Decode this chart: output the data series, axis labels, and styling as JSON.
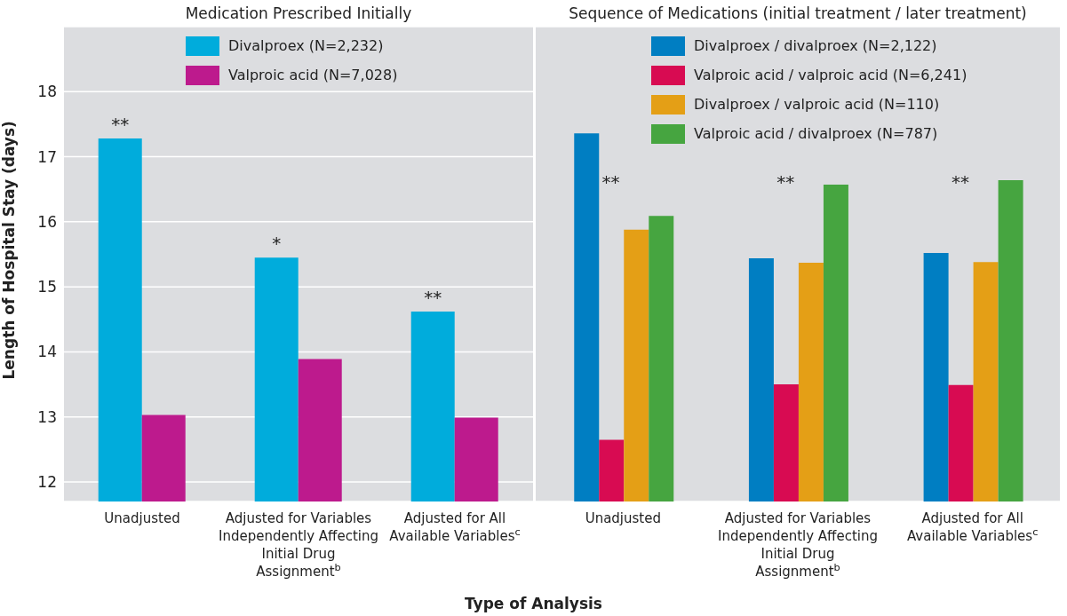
{
  "chart_data": [
    {
      "type": "bar",
      "title": "Medication Prescribed Initially",
      "ylabel": "Length of Hospital Stay (days)",
      "xlabel": "Type of Analysis",
      "categories": [
        "Unadjusted",
        "Adjusted for Variables Independently Affecting Initial Drug Assignment$^{b}$",
        "Adjusted for All Available Variables$^{c}$"
      ],
      "series": [
        {
          "name": "Divalproex (N=2,232)",
          "color": "#00acdc",
          "values": [
            17.28,
            15.45,
            14.62
          ]
        },
        {
          "name": "Valproic acid (N=7,028)",
          "color": "#bd1a8d",
          "values": [
            13.03,
            13.89,
            12.99
          ]
        }
      ],
      "ylim": [
        11.7,
        19
      ],
      "yticks": [
        12,
        13,
        14,
        15,
        16,
        17,
        18
      ],
      "grid": "y",
      "legend": "top",
      "annotations": [
        "**",
        "*",
        "**"
      ]
    },
    {
      "type": "bar",
      "title": "Sequence of Medications (initial treatment / later treatment)",
      "categories": [
        "Unadjusted",
        "Adjusted for Variables Independently Affecting Initial Drug Assignment$^{b}$",
        "Adjusted for All Available Variables$^{c}$"
      ],
      "series": [
        {
          "name": "Divalproex / divalproex (N=2,122)",
          "color": "#007ec2",
          "values": [
            17.36,
            15.44,
            15.52
          ]
        },
        {
          "name": "Valproic acid / valproic acid (N=6,241)",
          "color": "#d80b52",
          "values": [
            12.65,
            13.5,
            13.49
          ]
        },
        {
          "name": "Divalproex / valproic acid (N=110)",
          "color": "#e49f16",
          "values": [
            15.88,
            15.37,
            15.38
          ]
        },
        {
          "name": "Valproic acid / divalproex (N=787)",
          "color": "#46a540",
          "values": [
            16.09,
            16.57,
            16.64
          ]
        }
      ],
      "ylim": [
        11.7,
        19
      ],
      "yticks": [
        12,
        13,
        14,
        15,
        16,
        17,
        18
      ],
      "grid": "y",
      "legend": "top",
      "tick_labels": "x",
      "annotations": [
        "**",
        "**",
        "**"
      ]
    }
  ]
}
